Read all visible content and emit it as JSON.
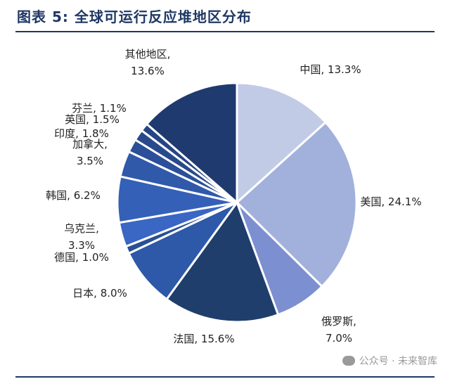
{
  "title": "图表 5:  全球可运行反应堆地区分布",
  "watermark": "公众号 · 未来智库",
  "chart_data": {
    "type": "pie",
    "title": "全球可运行反应堆地区分布",
    "unit": "%",
    "start": "12 o'clock",
    "direction": "clockwise",
    "slices": [
      {
        "name": "中国",
        "value": 13.3,
        "label": [
          "中国, 13.3%"
        ],
        "color": "#c2cbe6"
      },
      {
        "name": "美国",
        "value": 24.1,
        "label": [
          "美国, 24.1%"
        ],
        "color": "#a2b0dc"
      },
      {
        "name": "俄罗斯",
        "value": 7.0,
        "label": [
          "俄罗斯,",
          "7.0%"
        ],
        "color": "#7c8fd0"
      },
      {
        "name": "法国",
        "value": 15.6,
        "label": [
          "法国, 15.6%"
        ],
        "color": "#1f3e6c"
      },
      {
        "name": "日本",
        "value": 8.0,
        "label": [
          "日本, 8.0%"
        ],
        "color": "#2e59a8"
      },
      {
        "name": "德国",
        "value": 1.0,
        "label": [
          "德国, 1.0%"
        ],
        "color": "#2a4f94"
      },
      {
        "name": "乌克兰",
        "value": 3.3,
        "label": [
          "乌克兰,",
          "3.3%"
        ],
        "color": "#3a66c4"
      },
      {
        "name": "韩国",
        "value": 6.2,
        "label": [
          "韩国, 6.2%"
        ],
        "color": "#3560b8"
      },
      {
        "name": "加拿大",
        "value": 3.5,
        "label": [
          "加拿大,",
          "3.5%"
        ],
        "color": "#3059aa"
      },
      {
        "name": "印度",
        "value": 1.8,
        "label": [
          "印度, 1.8%"
        ],
        "color": "#2b4f98"
      },
      {
        "name": "英国",
        "value": 1.5,
        "label": [
          "英国, 1.5%"
        ],
        "color": "#284a8c"
      },
      {
        "name": "芬兰",
        "value": 1.1,
        "label": [
          "芬兰, 1.1%"
        ],
        "color": "#264584"
      },
      {
        "name": "其他地区",
        "value": 13.6,
        "label": [
          "其他地区,",
          "13.6%"
        ],
        "color": "#1f3a6e"
      }
    ]
  }
}
